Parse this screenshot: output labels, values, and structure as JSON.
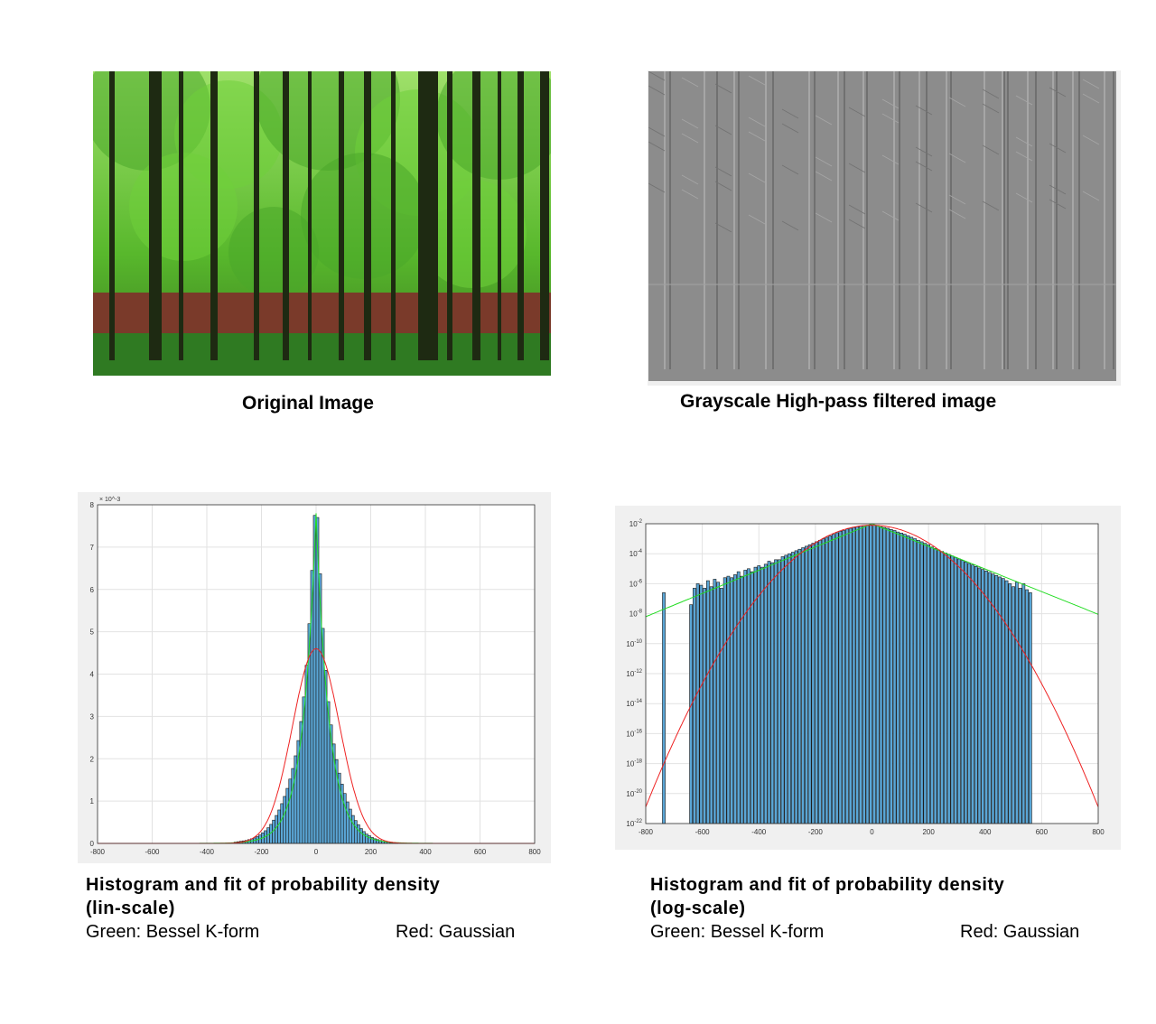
{
  "captions": {
    "original": "Original Image",
    "highpass": "Grayscale High-pass filtered image"
  },
  "lin_panel": {
    "title_line1": "Histogram and fit of probability density",
    "title_line2": "(lin-scale)",
    "legend_green": "Green: Bessel K-form",
    "legend_red": "Red: Gaussian"
  },
  "log_panel": {
    "title_line1": "Histogram and fit of probability density",
    "title_line2": "(log-scale)",
    "legend_green": "Green: Bessel K-form",
    "legend_red": "Red: Gaussian"
  },
  "colors": {
    "bar_fill": "#5aa6d6",
    "bar_edge": "#1a1a1a",
    "bessel": "#22dd22",
    "gaussian": "#ee2222",
    "grid": "#e2e2e2"
  },
  "chart_data": [
    {
      "type": "bar",
      "scale": "linear",
      "x_ticks": [
        "-800",
        "-600",
        "-400",
        "-200",
        "0",
        "200",
        "400",
        "600",
        "800"
      ],
      "y_ticks": [
        "0",
        "1",
        "2",
        "3",
        "4",
        "5",
        "6",
        "7",
        "8"
      ],
      "y_exponent": "× 10^-3",
      "xlim": [
        -800,
        800
      ],
      "ylim": [
        0,
        0.008
      ],
      "grid": true,
      "bin_width": 10,
      "bin_centers": [
        -295,
        -285,
        -275,
        -265,
        -255,
        -245,
        -235,
        -225,
        -215,
        -205,
        -195,
        -185,
        -175,
        -165,
        -155,
        -145,
        -135,
        -125,
        -115,
        -105,
        -95,
        -85,
        -75,
        -65,
        -55,
        -45,
        -35,
        -25,
        -15,
        -5,
        5,
        15,
        25,
        35,
        45,
        55,
        65,
        75,
        85,
        95,
        105,
        115,
        125,
        135,
        145,
        155,
        165,
        175,
        185,
        195,
        205,
        215,
        225,
        235,
        245,
        255,
        265,
        275,
        285,
        295
      ],
      "values": [
        3e-05,
        4e-05,
        5e-05,
        6e-05,
        7e-05,
        9e-05,
        0.00011,
        0.00013,
        0.00016,
        0.0002,
        0.00025,
        0.0003,
        0.00037,
        0.00045,
        0.00055,
        0.00066,
        0.00079,
        0.00094,
        0.00111,
        0.0013,
        0.00152,
        0.00177,
        0.00207,
        0.00243,
        0.00288,
        0.00346,
        0.00421,
        0.00519,
        0.00645,
        0.00775,
        0.0077,
        0.00637,
        0.00508,
        0.00409,
        0.00335,
        0.0028,
        0.00235,
        0.00198,
        0.00166,
        0.0014,
        0.00118,
        0.00098,
        0.00081,
        0.00066,
        0.00054,
        0.00044,
        0.00035,
        0.00028,
        0.00022,
        0.00018,
        0.00014,
        0.00011,
        9e-05,
        7e-05,
        5e-05,
        4e-05,
        3e-05,
        2e-05,
        2e-05,
        1e-05
      ],
      "bessel_fit": {
        "peak": 0.0078,
        "scale": 48,
        "range": [
          -800,
          800
        ]
      },
      "gaussian_fit": {
        "mean": 0,
        "peak": 0.0046,
        "sigma": 86,
        "range": [
          -800,
          800
        ]
      }
    },
    {
      "type": "bar",
      "scale": "log",
      "x_ticks": [
        "-800",
        "-600",
        "-400",
        "-200",
        "0",
        "200",
        "400",
        "600",
        "800"
      ],
      "y_ticks": [
        "10^-22",
        "10^-20",
        "10^-18",
        "10^-16",
        "10^-14",
        "10^-12",
        "10^-10",
        "10^-8",
        "10^-6",
        "10^-4",
        "10^-2"
      ],
      "xlim": [
        -800,
        800
      ],
      "ylim_log10": [
        -22,
        -2
      ],
      "grid": true,
      "bin_width": 12,
      "bars": [
        {
          "x": -736,
          "log10": -6.6
        },
        {
          "x": -640,
          "log10": -7.4
        },
        {
          "x": -628,
          "log10": -6.3
        },
        {
          "x": -616,
          "log10": -6.0
        },
        {
          "x": -604,
          "log10": -6.1
        },
        {
          "x": -592,
          "log10": -6.3
        },
        {
          "x": -580,
          "log10": -5.8
        },
        {
          "x": -568,
          "log10": -6.2
        },
        {
          "x": -556,
          "log10": -5.7
        },
        {
          "x": -544,
          "log10": -5.9
        },
        {
          "x": -532,
          "log10": -6.3
        },
        {
          "x": -520,
          "log10": -5.6
        },
        {
          "x": -508,
          "log10": -5.5
        },
        {
          "x": -496,
          "log10": -5.6
        },
        {
          "x": -484,
          "log10": -5.4
        },
        {
          "x": -472,
          "log10": -5.2
        },
        {
          "x": -460,
          "log10": -5.5
        },
        {
          "x": -448,
          "log10": -5.1
        },
        {
          "x": -436,
          "log10": -5.0
        },
        {
          "x": -424,
          "log10": -5.2
        },
        {
          "x": -412,
          "log10": -4.9
        },
        {
          "x": -400,
          "log10": -4.8
        },
        {
          "x": -388,
          "log10": -4.9
        },
        {
          "x": -376,
          "log10": -4.7
        },
        {
          "x": -364,
          "log10": -4.5
        },
        {
          "x": -352,
          "log10": -4.6
        },
        {
          "x": -340,
          "log10": -4.4
        },
        {
          "x": -328,
          "log10": -4.4
        },
        {
          "x": -316,
          "log10": -4.2
        },
        {
          "x": -304,
          "log10": -4.1
        },
        {
          "x": -292,
          "log10": -4.0
        },
        {
          "x": -280,
          "log10": -3.9
        },
        {
          "x": -268,
          "log10": -3.8
        },
        {
          "x": -256,
          "log10": -3.7
        },
        {
          "x": -244,
          "log10": -3.6
        },
        {
          "x": -232,
          "log10": -3.5
        },
        {
          "x": -220,
          "log10": -3.4
        },
        {
          "x": -208,
          "log10": -3.3
        },
        {
          "x": -196,
          "log10": -3.2
        },
        {
          "x": -184,
          "log10": -3.1
        },
        {
          "x": -172,
          "log10": -3.0
        },
        {
          "x": -160,
          "log10": -2.9
        },
        {
          "x": -148,
          "log10": -2.8
        },
        {
          "x": -136,
          "log10": -2.7
        },
        {
          "x": -124,
          "log10": -2.6
        },
        {
          "x": -112,
          "log10": -2.5
        },
        {
          "x": -100,
          "log10": -2.45
        },
        {
          "x": -88,
          "log10": -2.35
        },
        {
          "x": -76,
          "log10": -2.3
        },
        {
          "x": -64,
          "log10": -2.25
        },
        {
          "x": -52,
          "log10": -2.2
        },
        {
          "x": -40,
          "log10": -2.15
        },
        {
          "x": -28,
          "log10": -2.12
        },
        {
          "x": -16,
          "log10": -2.1
        },
        {
          "x": -4,
          "log10": -2.08
        },
        {
          "x": 8,
          "log10": -2.1
        },
        {
          "x": 20,
          "log10": -2.15
        },
        {
          "x": 32,
          "log10": -2.2
        },
        {
          "x": 44,
          "log10": -2.25
        },
        {
          "x": 56,
          "log10": -2.3
        },
        {
          "x": 68,
          "log10": -2.38
        },
        {
          "x": 80,
          "log10": -2.45
        },
        {
          "x": 92,
          "log10": -2.55
        },
        {
          "x": 104,
          "log10": -2.62
        },
        {
          "x": 116,
          "log10": -2.7
        },
        {
          "x": 128,
          "log10": -2.8
        },
        {
          "x": 140,
          "log10": -2.9
        },
        {
          "x": 152,
          "log10": -3.0
        },
        {
          "x": 164,
          "log10": -3.1
        },
        {
          "x": 176,
          "log10": -3.2
        },
        {
          "x": 188,
          "log10": -3.3
        },
        {
          "x": 200,
          "log10": -3.4
        },
        {
          "x": 212,
          "log10": -3.55
        },
        {
          "x": 224,
          "log10": -3.65
        },
        {
          "x": 236,
          "log10": -3.75
        },
        {
          "x": 248,
          "log10": -3.85
        },
        {
          "x": 260,
          "log10": -3.95
        },
        {
          "x": 272,
          "log10": -4.05
        },
        {
          "x": 284,
          "log10": -4.15
        },
        {
          "x": 296,
          "log10": -4.25
        },
        {
          "x": 308,
          "log10": -4.35
        },
        {
          "x": 320,
          "log10": -4.45
        },
        {
          "x": 332,
          "log10": -4.55
        },
        {
          "x": 344,
          "log10": -4.65
        },
        {
          "x": 356,
          "log10": -4.75
        },
        {
          "x": 368,
          "log10": -4.85
        },
        {
          "x": 380,
          "log10": -4.95
        },
        {
          "x": 392,
          "log10": -5.05
        },
        {
          "x": 404,
          "log10": -5.15
        },
        {
          "x": 416,
          "log10": -5.25
        },
        {
          "x": 428,
          "log10": -5.35
        },
        {
          "x": 440,
          "log10": -5.45
        },
        {
          "x": 452,
          "log10": -5.55
        },
        {
          "x": 464,
          "log10": -5.65
        },
        {
          "x": 476,
          "log10": -5.8
        },
        {
          "x": 488,
          "log10": -6.0
        },
        {
          "x": 500,
          "log10": -6.2
        },
        {
          "x": 512,
          "log10": -5.9
        },
        {
          "x": 524,
          "log10": -6.3
        },
        {
          "x": 536,
          "log10": -6.0
        },
        {
          "x": 548,
          "log10": -6.4
        },
        {
          "x": 560,
          "log10": -6.6
        }
      ],
      "bessel_fit": {
        "peak_log10": -2.0,
        "slope_left": 0.00775,
        "slope_right": 0.00755,
        "range": [
          -800,
          800
        ]
      },
      "gaussian_fit": {
        "mean": 0,
        "peak_log10": -2.1,
        "sigma": 86,
        "range": [
          -800,
          800
        ]
      }
    }
  ]
}
